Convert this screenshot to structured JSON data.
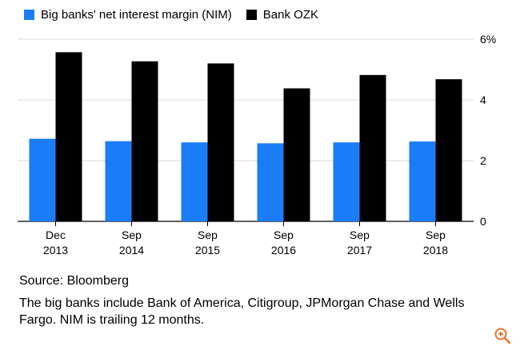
{
  "chart_data": {
    "type": "bar",
    "categories": [
      [
        "Dec",
        "2013"
      ],
      [
        "Sep",
        "2014"
      ],
      [
        "Sep",
        "2015"
      ],
      [
        "Sep",
        "2016"
      ],
      [
        "Sep",
        "2017"
      ],
      [
        "Sep",
        "2018"
      ]
    ],
    "series": [
      {
        "name": "Big banks' net interest margin (NIM)",
        "color": "#1a7df7",
        "values": [
          2.72,
          2.64,
          2.6,
          2.57,
          2.6,
          2.63
        ]
      },
      {
        "name": "Bank OZK",
        "color": "#000000",
        "values": [
          5.57,
          5.27,
          5.2,
          4.38,
          4.82,
          4.68
        ]
      }
    ],
    "y_ticks": [
      "0",
      "2",
      "4",
      "6%"
    ],
    "y_tick_values": [
      0,
      2,
      4,
      6
    ],
    "ylim": [
      0,
      6
    ],
    "y_axis_position": "right",
    "grid": true
  },
  "footer": {
    "source": "Source: Bloomberg",
    "note": "The big banks include Bank of America, Citigroup, JPMorgan Chase and Wells Fargo. NIM is trailing 12 months."
  },
  "zoom_icon": "zoom-in-icon",
  "zoom_color": "#e8742c"
}
